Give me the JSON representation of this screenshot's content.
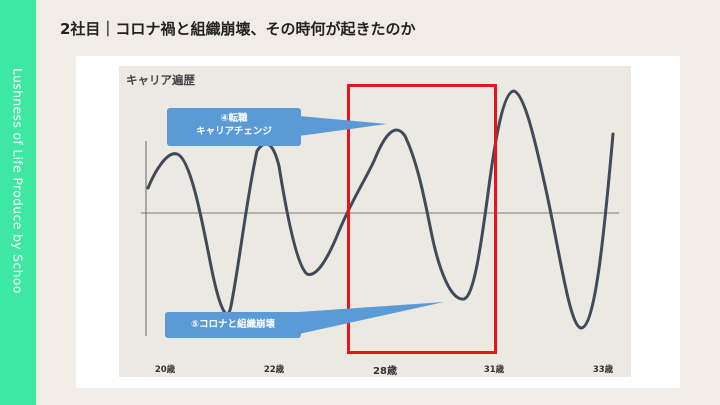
{
  "sidebar": {
    "text": "Lushness of Life Produce by Schoo"
  },
  "slide": {
    "title": "2社目｜コロナ禍と組織崩壊、その時何が起きたのか"
  },
  "chart_data": {
    "type": "line",
    "title": "キャリア遍歴",
    "x_ticks": [
      "20歳",
      "22歳",
      "28歳",
      "31歳",
      "33歳"
    ],
    "highlight_tick": "28歳",
    "callouts": [
      {
        "lines": [
          "④転職",
          "キャリアチェンジ"
        ]
      },
      {
        "lines": [
          "⑤コロナと組織崩壊"
        ]
      }
    ],
    "colors": {
      "line": "#3f4b5b",
      "highlight": "#e8141b",
      "callout": "#5b9bd5"
    }
  }
}
